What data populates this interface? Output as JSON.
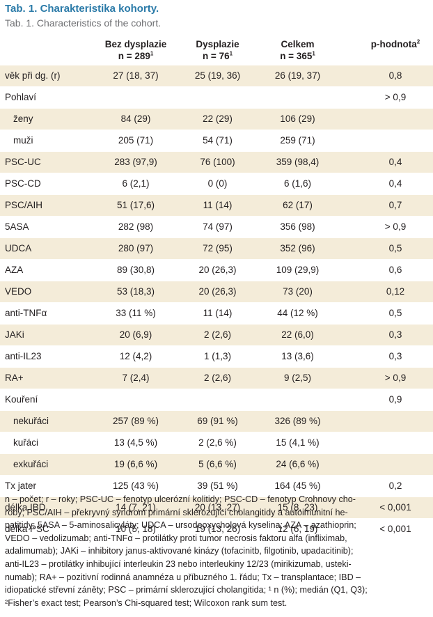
{
  "title": {
    "cz": "Tab. 1. Charakteristika kohorty.",
    "en": "Tab. 1. Characteristics of the cohort."
  },
  "header": {
    "col1_line1": "Bez dysplazie",
    "col1_line2": "n = 289",
    "col2_line1": "Dysplazie",
    "col2_line2": "n = 76",
    "col3_line1": "Celkem",
    "col3_line2": "n = 365",
    "col4": "p-hodnota",
    "sup1": "1",
    "sup2": "2"
  },
  "rows": [
    {
      "label": "věk při dg. (r)",
      "v1": "27 (18, 37)",
      "v2": "25 (19, 36)",
      "v3": "26 (19, 37)",
      "p": "0,8",
      "indent": false
    },
    {
      "label": "Pohlaví",
      "v1": "",
      "v2": "",
      "v3": "",
      "p": "> 0,9",
      "indent": false
    },
    {
      "label": "ženy",
      "v1": "84 (29)",
      "v2": "22 (29)",
      "v3": "106 (29)",
      "p": "",
      "indent": true
    },
    {
      "label": "muži",
      "v1": "205 (71)",
      "v2": "54 (71)",
      "v3": "259 (71)",
      "p": "",
      "indent": true
    },
    {
      "label": "PSC-UC",
      "v1": "283 (97,9)",
      "v2": "76 (100)",
      "v3": "359 (98,4)",
      "p": "0,4",
      "indent": false
    },
    {
      "label": "PSC-CD",
      "v1": "6 (2,1)",
      "v2": "0 (0)",
      "v3": "6 (1,6)",
      "p": "0,4",
      "indent": false
    },
    {
      "label": "PSC/AIH",
      "v1": "51 (17,6)",
      "v2": "11 (14)",
      "v3": "62 (17)",
      "p": "0,7",
      "indent": false
    },
    {
      "label": "5ASA",
      "v1": "282 (98)",
      "v2": "74 (97)",
      "v3": "356 (98)",
      "p": "> 0,9",
      "indent": false
    },
    {
      "label": "UDCA",
      "v1": "280 (97)",
      "v2": "72 (95)",
      "v3": "352 (96)",
      "p": "0,5",
      "indent": false
    },
    {
      "label": "AZA",
      "v1": "89 (30,8)",
      "v2": "20 (26,3)",
      "v3": "109 (29,9)",
      "p": "0,6",
      "indent": false
    },
    {
      "label": "VEDO",
      "v1": "53 (18,3)",
      "v2": "20 (26,3)",
      "v3": "73 (20)",
      "p": "0,12",
      "indent": false
    },
    {
      "label": "anti-TNFα",
      "v1": "33 (11 %)",
      "v2": "11 (14)",
      "v3": "44 (12 %)",
      "p": "0,5",
      "indent": false
    },
    {
      "label": "JAKi",
      "v1": "20 (6,9)",
      "v2": "2 (2,6)",
      "v3": "22 (6,0)",
      "p": "0,3",
      "indent": false
    },
    {
      "label": "anti-IL23",
      "v1": "12 (4,2)",
      "v2": "1 (1,3)",
      "v3": "13 (3,6)",
      "p": "0,3",
      "indent": false
    },
    {
      "label": "RA+",
      "v1": "7 (2,4)",
      "v2": "2 (2,6)",
      "v3": "9 (2,5)",
      "p": "> 0,9",
      "indent": false
    },
    {
      "label": "Kouření",
      "v1": "",
      "v2": "",
      "v3": "",
      "p": "0,9",
      "indent": false
    },
    {
      "label": "nekuřáci",
      "v1": "257 (89 %)",
      "v2": "69 (91 %)",
      "v3": "326 (89 %)",
      "p": "",
      "indent": true
    },
    {
      "label": "kuřáci",
      "v1": "13 (4,5 %)",
      "v2": "2 (2,6 %)",
      "v3": "15 (4,1 %)",
      "p": "",
      "indent": true
    },
    {
      "label": "exkuřáci",
      "v1": "19 (6,6 %)",
      "v2": "5 (6,6 %)",
      "v3": "24 (6,6 %)",
      "p": "",
      "indent": true
    },
    {
      "label": "Tx jater",
      "v1": "125 (43 %)",
      "v2": "39 (51 %)",
      "v3": "164 (45 %)",
      "p": "0,2",
      "indent": false
    },
    {
      "label": "délka IBD",
      "v1": "14 (7, 21)",
      "v2": "20 (13, 27)",
      "v3": "15 (8, 23)",
      "p": "< 0,001",
      "indent": false
    },
    {
      "label": "délka PSC",
      "v1": "10 (5, 18)",
      "v2": "19 (13, 26)",
      "v3": "12 (6, 19)",
      "p": "< 0,001",
      "indent": false
    }
  ],
  "footnote": [
    "n – počet; r – roky; PSC-UC – fenotyp ulcerózní kolitidy; PSC-CD – fenotyp Crohnovy cho-",
    "roby; PSC/AIH – překryvný syndrom primární sklerozující cholangitidy a autoimunitní he-",
    "patitidy; 5ASA – 5-aminosalicyláty; UDCA – ursodeoxycholová kyselina; AZA – azathioprin;",
    "VEDO – vedolizumab; anti-TNFα – protilátky proti tumor necrosis faktoru alfa (infliximab,",
    "adalimumab); JAKi – inhibitory janus-aktivované kinázy (tofacinitb, filgotinib, upadacitinib);",
    "anti-IL23 – protilátky inhibující interleukin 23 nebo interleukiny 12/23 (mirikizumab, usteki-",
    "numab); RA+ – pozitivní rodinná anamnéza u příbuzného 1. řádu; Tx – transplantace; IBD –",
    "idiopatické střevní záněty; PSC – primární sklerozující cholangitida; ¹ n (%); medián (Q1, Q3);",
    "²Fisher’s exact test; Pearson’s Chi-squared test; Wilcoxon rank sum test."
  ]
}
